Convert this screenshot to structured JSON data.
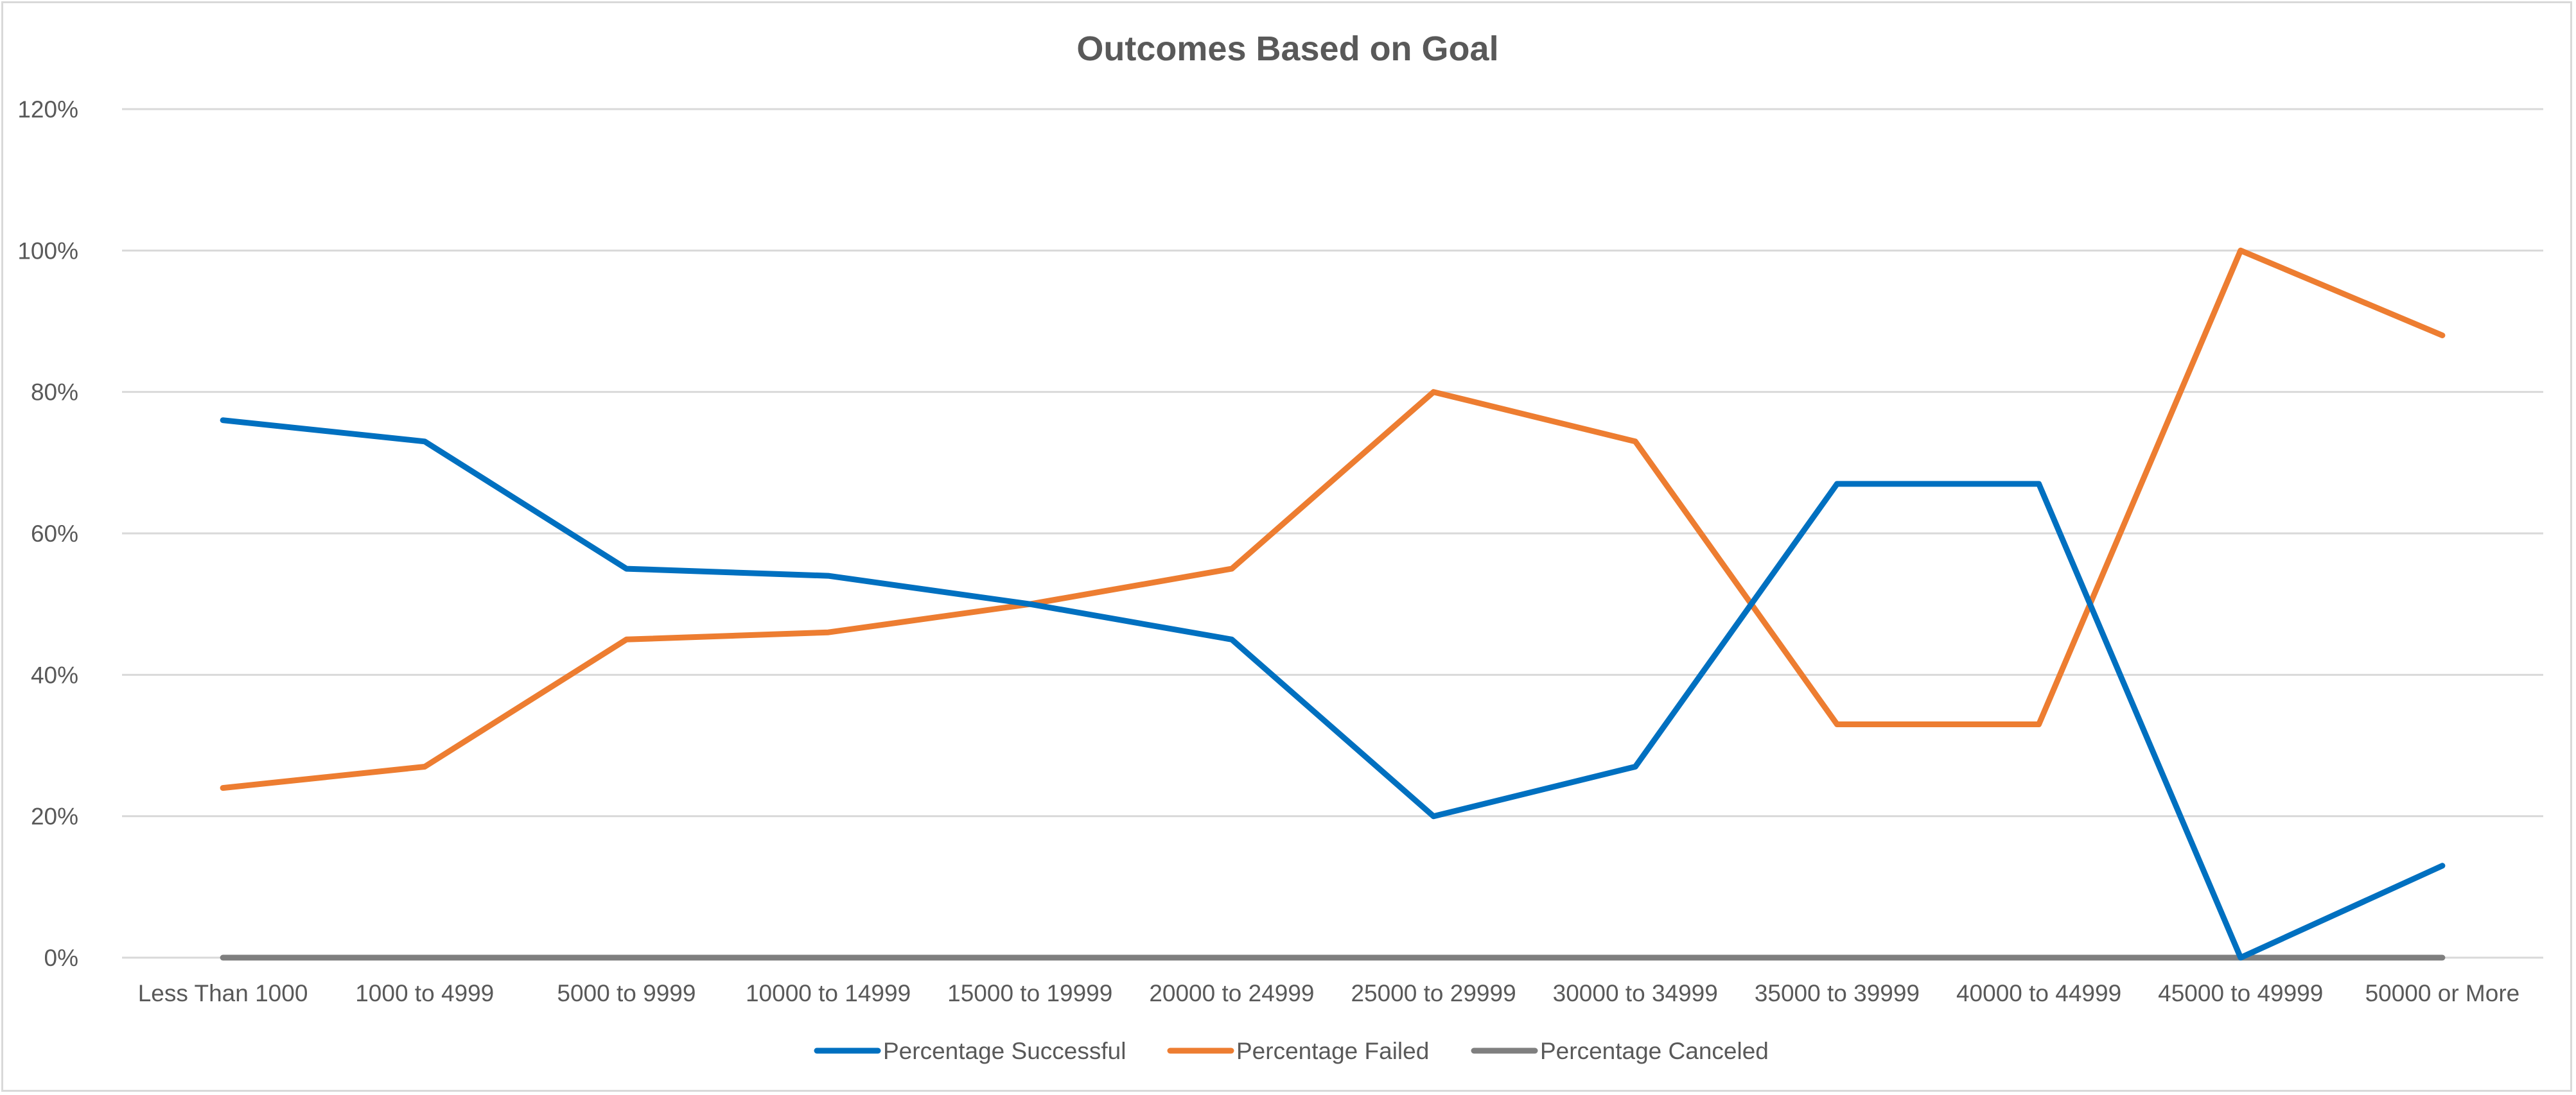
{
  "chart_data": {
    "type": "line",
    "title": "Outcomes Based on Goal",
    "xlabel": "",
    "ylabel": "",
    "categories": [
      "Less Than 1000",
      "1000 to 4999",
      "5000 to 9999",
      "10000 to 14999",
      "15000 to 19999",
      "20000 to 24999",
      "25000 to 29999",
      "30000 to 34999",
      "35000 to 39999",
      "40000 to 44999",
      "45000 to 49999",
      "50000 or More"
    ],
    "ylim": [
      0,
      1.2
    ],
    "yticks": [
      0,
      0.2,
      0.4,
      0.6,
      0.8,
      1.0,
      1.2
    ],
    "ytick_labels": [
      "0%",
      "20%",
      "40%",
      "60%",
      "80%",
      "100%",
      "120%"
    ],
    "grid": true,
    "legend_position": "bottom",
    "series": [
      {
        "name": "Percentage Successful",
        "color": "#0070c0",
        "values": [
          0.76,
          0.73,
          0.55,
          0.54,
          0.5,
          0.45,
          0.2,
          0.27,
          0.67,
          0.67,
          0.0,
          0.13
        ]
      },
      {
        "name": "Percentage Failed",
        "color": "#ed7d31",
        "values": [
          0.24,
          0.27,
          0.45,
          0.46,
          0.5,
          0.55,
          0.8,
          0.73,
          0.33,
          0.33,
          1.0,
          0.88
        ]
      },
      {
        "name": "Percentage Canceled",
        "color": "#7f7f7f",
        "values": [
          0,
          0,
          0,
          0,
          0,
          0,
          0,
          0,
          0,
          0,
          0,
          0
        ]
      }
    ]
  }
}
